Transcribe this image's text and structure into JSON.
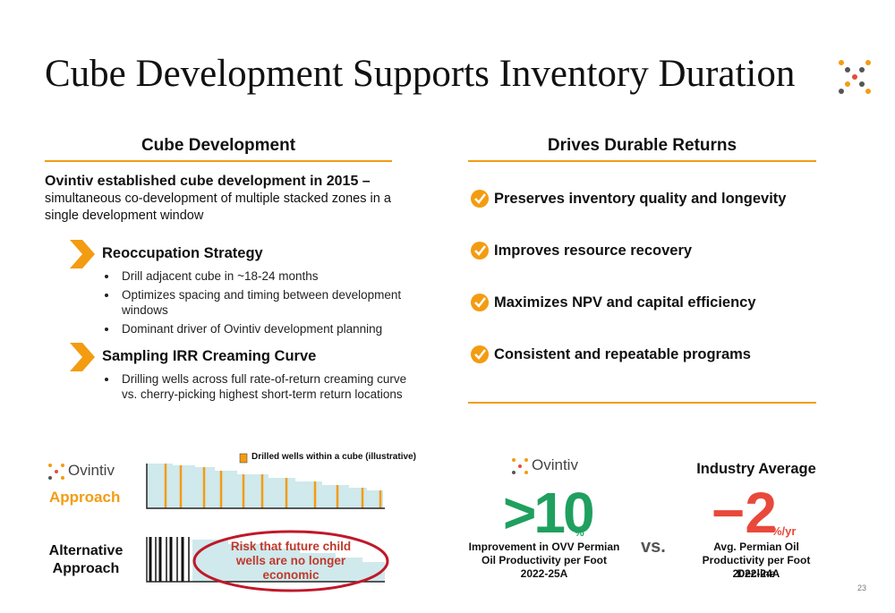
{
  "header": {
    "title": "Cube Development Supports Inventory Duration"
  },
  "left": {
    "heading": "Cube Development",
    "intro_bold": "Ovintiv established cube development in 2015 –",
    "intro": "simultaneous co-development of multiple stacked zones in a single development window",
    "sections": [
      {
        "title": "Reoccupation Strategy",
        "bullets": [
          "Drill adjacent cube in ~18-24 months",
          "Optimizes spacing and timing between development windows",
          "Dominant driver of Ovintiv development planning"
        ]
      },
      {
        "title": "Sampling IRR Creaming Curve",
        "bullets": [
          "Drilling wells across full rate-of-return creaming curve vs. cherry-picking highest short-term return locations"
        ]
      }
    ]
  },
  "right": {
    "heading": "Drives Durable Returns",
    "items": [
      "Preserves inventory quality and longevity",
      "Improves resource recovery",
      "Maximizes NPV and capital efficiency",
      "Consistent and repeatable programs"
    ]
  },
  "illustration": {
    "legend": "Drilled wells within a cube (illustrative)",
    "ovintiv_logo": "Ovintiv",
    "ovintiv_label": "Approach",
    "alternative_label": "Alternative Approach",
    "risk_note": "Risk that future child wells are no longer economic"
  },
  "comparison": {
    "ovintiv": {
      "logo": "Ovintiv",
      "value": ">10",
      "unit": "%",
      "description": "Improvement in OVV Permian Oil Productivity per Foot",
      "period": "2022-25A"
    },
    "vs": "vs.",
    "industry": {
      "title": "Industry Average",
      "value": "−2",
      "unit": "%/yr",
      "description": "Avg. Permian Oil Productivity per Foot Decline",
      "period": "2022-24A"
    }
  },
  "footer": {
    "page_number": "23"
  }
}
